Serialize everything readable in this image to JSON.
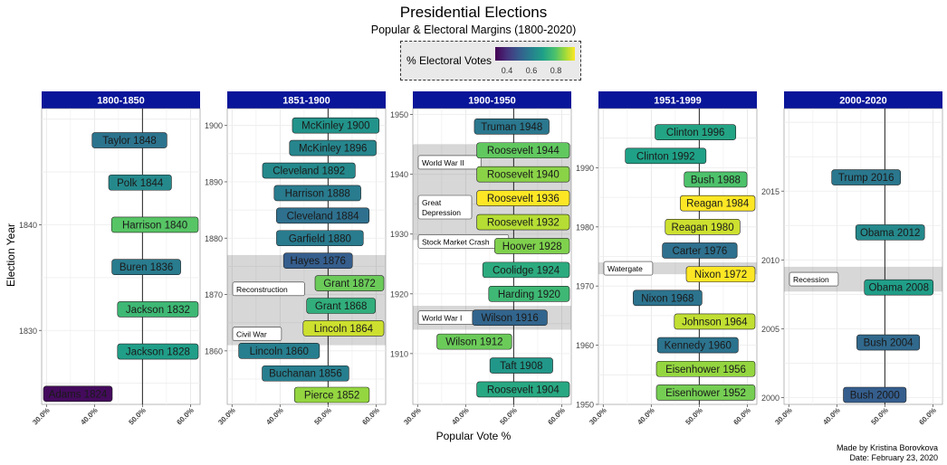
{
  "chart_data": {
    "type": "scatter",
    "title": "Presidential Elections",
    "subtitle": "Popular & Electoral Margins (1800-2020)",
    "xlabel": "Popular Vote %",
    "ylabel": "Election Year",
    "xlim": [
      29,
      62
    ],
    "x_ticks": [
      30,
      40,
      50,
      60
    ],
    "x_tick_labels": [
      "30.0%",
      "40.0%",
      "50.0%",
      "60.0%"
    ],
    "grid": true,
    "legend": {
      "title": "% Electoral Votes",
      "position": "top-center",
      "colormap": "viridis",
      "range": [
        0.3,
        0.95
      ],
      "ticks": [
        0.4,
        0.6,
        0.8
      ],
      "tick_labels": [
        "0.4",
        "0.6",
        "0.8"
      ]
    },
    "panels": [
      {
        "title": "1800-1850",
        "ylim": [
          1823,
          1851
        ],
        "y_ticks": [
          1830,
          1840
        ],
        "elections": [
          {
            "label": "Adams 1824",
            "year": 1824,
            "popular": 30.9,
            "electoral": 0.32
          },
          {
            "label": "Jackson 1828",
            "year": 1828,
            "popular": 56.0,
            "electoral": 0.68
          },
          {
            "label": "Jackson 1832",
            "year": 1832,
            "popular": 54.2,
            "electoral": 0.76
          },
          {
            "label": "Buren 1836",
            "year": 1836,
            "popular": 50.8,
            "electoral": 0.58
          },
          {
            "label": "Harrison 1840",
            "year": 1840,
            "popular": 52.9,
            "electoral": 0.8
          },
          {
            "label": "Polk 1844",
            "year": 1844,
            "popular": 49.5,
            "electoral": 0.62
          },
          {
            "label": "Taylor 1848",
            "year": 1848,
            "popular": 47.3,
            "electoral": 0.56
          }
        ],
        "events": []
      },
      {
        "title": "1851-1900",
        "ylim": [
          1850.5,
          1903
        ],
        "y_ticks": [
          1850,
          1860,
          1870,
          1880,
          1890,
          1900
        ],
        "elections": [
          {
            "label": "Pierce 1852",
            "year": 1852,
            "popular": 50.8,
            "electoral": 0.86
          },
          {
            "label": "Buchanan 1856",
            "year": 1856,
            "popular": 45.3,
            "electoral": 0.59
          },
          {
            "label": "Lincoln 1860",
            "year": 1860,
            "popular": 39.8,
            "electoral": 0.59
          },
          {
            "label": "Lincoln 1864",
            "year": 1864,
            "popular": 55.0,
            "electoral": 0.91
          },
          {
            "label": "Grant 1868",
            "year": 1868,
            "popular": 52.7,
            "electoral": 0.73
          },
          {
            "label": "Grant 1872",
            "year": 1872,
            "popular": 55.6,
            "electoral": 0.82
          },
          {
            "label": "Hayes 1876",
            "year": 1876,
            "popular": 47.9,
            "electoral": 0.5
          },
          {
            "label": "Garfield 1880",
            "year": 1880,
            "popular": 48.3,
            "electoral": 0.58
          },
          {
            "label": "Cleveland 1884",
            "year": 1884,
            "popular": 48.9,
            "electoral": 0.55
          },
          {
            "label": "Harrison 1888",
            "year": 1888,
            "popular": 47.8,
            "electoral": 0.58
          },
          {
            "label": "Cleveland 1892",
            "year": 1892,
            "popular": 46.0,
            "electoral": 0.62
          },
          {
            "label": "McKinley 1896",
            "year": 1896,
            "popular": 51.0,
            "electoral": 0.61
          },
          {
            "label": "McKinley 1900",
            "year": 1900,
            "popular": 51.6,
            "electoral": 0.65
          }
        ],
        "events": [
          {
            "label": "Civil War",
            "from": 1861,
            "to": 1865
          },
          {
            "label": "Reconstruction",
            "from": 1865,
            "to": 1877
          }
        ]
      },
      {
        "title": "1900-1950",
        "ylim": [
          1901.5,
          1951
        ],
        "y_ticks": [
          1910,
          1920,
          1930,
          1940,
          1950
        ],
        "elections": [
          {
            "label": "Roosevelt 1904",
            "year": 1904,
            "popular": 56.4,
            "electoral": 0.71
          },
          {
            "label": "Taft 1908",
            "year": 1908,
            "popular": 51.6,
            "electoral": 0.66
          },
          {
            "label": "Wilson 1912",
            "year": 1912,
            "popular": 41.8,
            "electoral": 0.82
          },
          {
            "label": "Wilson 1916",
            "year": 1916,
            "popular": 49.2,
            "electoral": 0.52
          },
          {
            "label": "Harding 1920",
            "year": 1920,
            "popular": 60.3,
            "electoral": 0.76
          },
          {
            "label": "Coolidge 1924",
            "year": 1924,
            "popular": 54.0,
            "electoral": 0.72
          },
          {
            "label": "Hoover 1928",
            "year": 1928,
            "popular": 58.2,
            "electoral": 0.84
          },
          {
            "label": "Roosevelt 1932",
            "year": 1932,
            "popular": 57.4,
            "electoral": 0.89
          },
          {
            "label": "Roosevelt 1936",
            "year": 1936,
            "popular": 60.8,
            "electoral": 0.98
          },
          {
            "label": "Roosevelt 1940",
            "year": 1940,
            "popular": 54.7,
            "electoral": 0.85
          },
          {
            "label": "Roosevelt 1944",
            "year": 1944,
            "popular": 53.4,
            "electoral": 0.81
          },
          {
            "label": "Truman 1948",
            "year": 1948,
            "popular": 49.6,
            "electoral": 0.57
          }
        ],
        "events": [
          {
            "label": "World War I",
            "from": 1914,
            "to": 1918
          },
          {
            "label": "Great Depression",
            "from": 1929,
            "to": 1939
          },
          {
            "label": "Stock Market Crash",
            "from": 1929,
            "to": 1929
          },
          {
            "label": "World War II",
            "from": 1939,
            "to": 1945
          }
        ]
      },
      {
        "title": "1951-1999",
        "ylim": [
          1950,
          2000
        ],
        "y_ticks": [
          1950,
          1960,
          1970,
          1980,
          1990
        ],
        "elections": [
          {
            "label": "Eisenhower 1952",
            "year": 1952,
            "popular": 55.2,
            "electoral": 0.83
          },
          {
            "label": "Eisenhower 1956",
            "year": 1956,
            "popular": 57.4,
            "electoral": 0.86
          },
          {
            "label": "Kennedy 1960",
            "year": 1960,
            "popular": 49.7,
            "electoral": 0.56
          },
          {
            "label": "Johnson 1964",
            "year": 1964,
            "popular": 61.1,
            "electoral": 0.9
          },
          {
            "label": "Nixon 1968",
            "year": 1968,
            "popular": 43.4,
            "electoral": 0.56
          },
          {
            "label": "Nixon 1972",
            "year": 1972,
            "popular": 60.7,
            "electoral": 0.97
          },
          {
            "label": "Carter 1976",
            "year": 1976,
            "popular": 50.1,
            "electoral": 0.55
          },
          {
            "label": "Reagan 1980",
            "year": 1980,
            "popular": 50.7,
            "electoral": 0.91
          },
          {
            "label": "Reagan 1984",
            "year": 1984,
            "popular": 58.8,
            "electoral": 0.98
          },
          {
            "label": "Bush 1988",
            "year": 1988,
            "popular": 53.4,
            "electoral": 0.79
          },
          {
            "label": "Clinton 1992",
            "year": 1992,
            "popular": 43.0,
            "electoral": 0.69
          },
          {
            "label": "Clinton 1996",
            "year": 1996,
            "popular": 49.2,
            "electoral": 0.7
          }
        ],
        "events": [
          {
            "label": "Watergate",
            "from": 1972,
            "to": 1974
          }
        ]
      },
      {
        "title": "2000-2020",
        "ylim": [
          1999.5,
          2021
        ],
        "y_ticks": [
          2000,
          2005,
          2010,
          2015
        ],
        "elections": [
          {
            "label": "Bush 2000",
            "year": 2000,
            "popular": 47.9,
            "electoral": 0.5
          },
          {
            "label": "Bush 2004",
            "year": 2004,
            "popular": 50.7,
            "electoral": 0.53
          },
          {
            "label": "Obama 2008",
            "year": 2008,
            "popular": 52.9,
            "electoral": 0.68
          },
          {
            "label": "Obama 2012",
            "year": 2012,
            "popular": 51.1,
            "electoral": 0.62
          },
          {
            "label": "Trump 2016",
            "year": 2016,
            "popular": 46.1,
            "electoral": 0.57
          }
        ],
        "events": [
          {
            "label": "Recession",
            "from": 2007.7,
            "to": 2009.5
          }
        ]
      }
    ]
  },
  "credit": {
    "line1": "Made by Kristina Borovkova",
    "line2": "Date: February 23, 2020"
  }
}
